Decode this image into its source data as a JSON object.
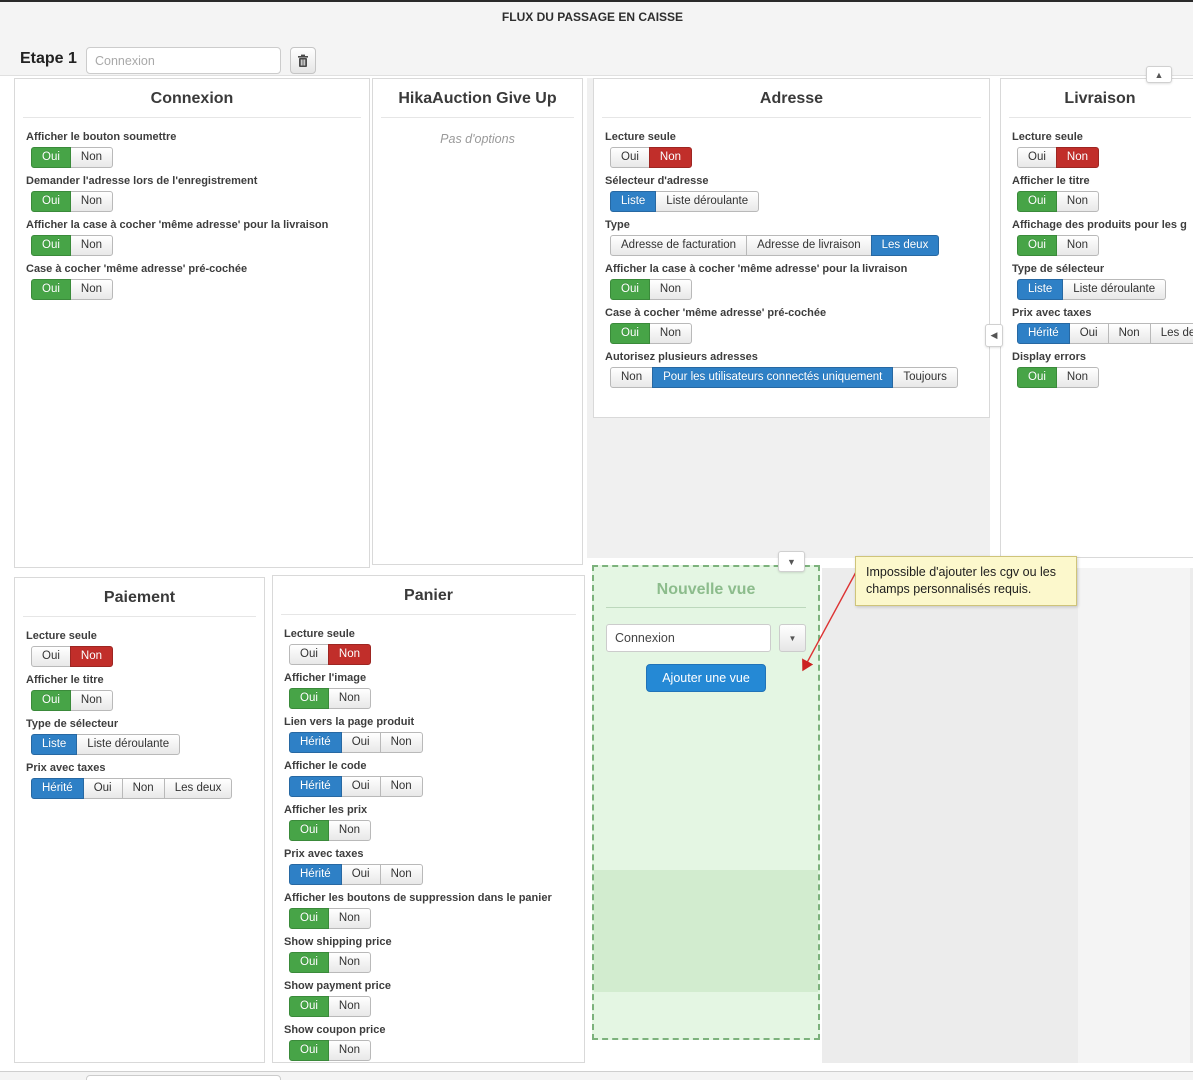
{
  "header": {
    "title": "FLUX DU PASSAGE EN CAISSE"
  },
  "step": {
    "label": "Etape 1",
    "name_placeholder": "Connexion"
  },
  "colors": {
    "green": "#47a447",
    "green_border": "#3a8a3a",
    "red": "#c12e2a",
    "red_border": "#9d2622",
    "blue": "#2e80c6",
    "blue_border": "#2768a2",
    "add_button": "#2589d5",
    "add_button_border": "#2173b8",
    "new_view_title": "#8cbc8c",
    "tooltip_bg": "#fcf8cc"
  },
  "icons": {
    "caret_up": "▲",
    "caret_down": "▼",
    "caret_left": "◀",
    "trash": "trash-icon"
  },
  "panels": [
    {
      "id": "connexion",
      "title": "Connexion",
      "options": [
        {
          "label": "Afficher le bouton soumettre",
          "choices": [
            {
              "text": "Oui",
              "state": "green"
            },
            {
              "text": "Non",
              "state": "off"
            }
          ]
        },
        {
          "label": "Demander l'adresse lors de l'enregistrement",
          "choices": [
            {
              "text": "Oui",
              "state": "green"
            },
            {
              "text": "Non",
              "state": "off"
            }
          ]
        },
        {
          "label": "Afficher la case à cocher 'même adresse' pour la livraison",
          "choices": [
            {
              "text": "Oui",
              "state": "green"
            },
            {
              "text": "Non",
              "state": "off"
            }
          ]
        },
        {
          "label": "Case à cocher 'même adresse' pré-cochée",
          "choices": [
            {
              "text": "Oui",
              "state": "green"
            },
            {
              "text": "Non",
              "state": "off"
            }
          ]
        }
      ]
    },
    {
      "id": "hikaauction",
      "title": "HikaAuction Give Up",
      "empty_text": "Pas d'options"
    },
    {
      "id": "adresse",
      "title": "Adresse",
      "options": [
        {
          "label": "Lecture seule",
          "choices": [
            {
              "text": "Oui",
              "state": "off"
            },
            {
              "text": "Non",
              "state": "red"
            }
          ]
        },
        {
          "label": "Sélecteur d'adresse",
          "choices": [
            {
              "text": "Liste",
              "state": "blue"
            },
            {
              "text": "Liste déroulante",
              "state": "off"
            }
          ]
        },
        {
          "label": "Type",
          "choices": [
            {
              "text": "Adresse de facturation",
              "state": "off"
            },
            {
              "text": "Adresse de livraison",
              "state": "off"
            },
            {
              "text": "Les deux",
              "state": "blue"
            }
          ]
        },
        {
          "label": "Afficher la case à cocher 'même adresse' pour la livraison",
          "choices": [
            {
              "text": "Oui",
              "state": "green"
            },
            {
              "text": "Non",
              "state": "off"
            }
          ]
        },
        {
          "label": "Case à cocher 'même adresse' pré-cochée",
          "choices": [
            {
              "text": "Oui",
              "state": "green"
            },
            {
              "text": "Non",
              "state": "off"
            }
          ]
        },
        {
          "label": "Autorisez plusieurs adresses",
          "choices": [
            {
              "text": "Non",
              "state": "off"
            },
            {
              "text": "Pour les utilisateurs connectés uniquement",
              "state": "blue"
            },
            {
              "text": "Toujours",
              "state": "off"
            }
          ]
        }
      ]
    },
    {
      "id": "livraison",
      "title": "Livraison",
      "options": [
        {
          "label": "Lecture seule",
          "choices": [
            {
              "text": "Oui",
              "state": "off"
            },
            {
              "text": "Non",
              "state": "red"
            }
          ]
        },
        {
          "label": "Afficher le titre",
          "choices": [
            {
              "text": "Oui",
              "state": "green"
            },
            {
              "text": "Non",
              "state": "off"
            }
          ]
        },
        {
          "label": "Affichage des produits pour les g",
          "choices": [
            {
              "text": "Oui",
              "state": "green"
            },
            {
              "text": "Non",
              "state": "off"
            }
          ]
        },
        {
          "label": "Type de sélecteur",
          "choices": [
            {
              "text": "Liste",
              "state": "blue"
            },
            {
              "text": "Liste déroulante",
              "state": "off"
            }
          ]
        },
        {
          "label": "Prix avec taxes",
          "choices": [
            {
              "text": "Hérité",
              "state": "blue"
            },
            {
              "text": "Oui",
              "state": "off"
            },
            {
              "text": "Non",
              "state": "off"
            },
            {
              "text": "Les deux",
              "state": "off"
            }
          ]
        },
        {
          "label": "Display errors",
          "choices": [
            {
              "text": "Oui",
              "state": "green"
            },
            {
              "text": "Non",
              "state": "off"
            }
          ]
        }
      ]
    },
    {
      "id": "paiement",
      "title": "Paiement",
      "options": [
        {
          "label": "Lecture seule",
          "choices": [
            {
              "text": "Oui",
              "state": "off"
            },
            {
              "text": "Non",
              "state": "red"
            }
          ]
        },
        {
          "label": "Afficher le titre",
          "choices": [
            {
              "text": "Oui",
              "state": "green"
            },
            {
              "text": "Non",
              "state": "off"
            }
          ]
        },
        {
          "label": "Type de sélecteur",
          "choices": [
            {
              "text": "Liste",
              "state": "blue"
            },
            {
              "text": "Liste déroulante",
              "state": "off"
            }
          ]
        },
        {
          "label": "Prix avec taxes",
          "choices": [
            {
              "text": "Hérité",
              "state": "blue"
            },
            {
              "text": "Oui",
              "state": "off"
            },
            {
              "text": "Non",
              "state": "off"
            },
            {
              "text": "Les deux",
              "state": "off"
            }
          ]
        }
      ]
    },
    {
      "id": "panier",
      "title": "Panier",
      "options": [
        {
          "label": "Lecture seule",
          "choices": [
            {
              "text": "Oui",
              "state": "off"
            },
            {
              "text": "Non",
              "state": "red"
            }
          ]
        },
        {
          "label": "Afficher l'image",
          "choices": [
            {
              "text": "Oui",
              "state": "green"
            },
            {
              "text": "Non",
              "state": "off"
            }
          ]
        },
        {
          "label": "Lien vers la page produit",
          "choices": [
            {
              "text": "Hérité",
              "state": "blue"
            },
            {
              "text": "Oui",
              "state": "off"
            },
            {
              "text": "Non",
              "state": "off"
            }
          ]
        },
        {
          "label": "Afficher le code",
          "choices": [
            {
              "text": "Hérité",
              "state": "blue"
            },
            {
              "text": "Oui",
              "state": "off"
            },
            {
              "text": "Non",
              "state": "off"
            }
          ]
        },
        {
          "label": "Afficher les prix",
          "choices": [
            {
              "text": "Oui",
              "state": "green"
            },
            {
              "text": "Non",
              "state": "off"
            }
          ]
        },
        {
          "label": "Prix avec taxes",
          "choices": [
            {
              "text": "Hérité",
              "state": "blue"
            },
            {
              "text": "Oui",
              "state": "off"
            },
            {
              "text": "Non",
              "state": "off"
            }
          ]
        },
        {
          "label": "Afficher les boutons de suppression dans le panier",
          "choices": [
            {
              "text": "Oui",
              "state": "green"
            },
            {
              "text": "Non",
              "state": "off"
            }
          ]
        },
        {
          "label": "Show shipping price",
          "choices": [
            {
              "text": "Oui",
              "state": "green"
            },
            {
              "text": "Non",
              "state": "off"
            }
          ]
        },
        {
          "label": "Show payment price",
          "choices": [
            {
              "text": "Oui",
              "state": "green"
            },
            {
              "text": "Non",
              "state": "off"
            }
          ]
        },
        {
          "label": "Show coupon price",
          "choices": [
            {
              "text": "Oui",
              "state": "green"
            },
            {
              "text": "Non",
              "state": "off"
            }
          ]
        }
      ]
    }
  ],
  "new_view": {
    "title": "Nouvelle vue",
    "selected_step_view": "Connexion",
    "add_button_label": "Ajouter une vue"
  },
  "tooltip": {
    "text": "Impossible d'ajouter les cgv ou les champs personnalisés requis."
  }
}
